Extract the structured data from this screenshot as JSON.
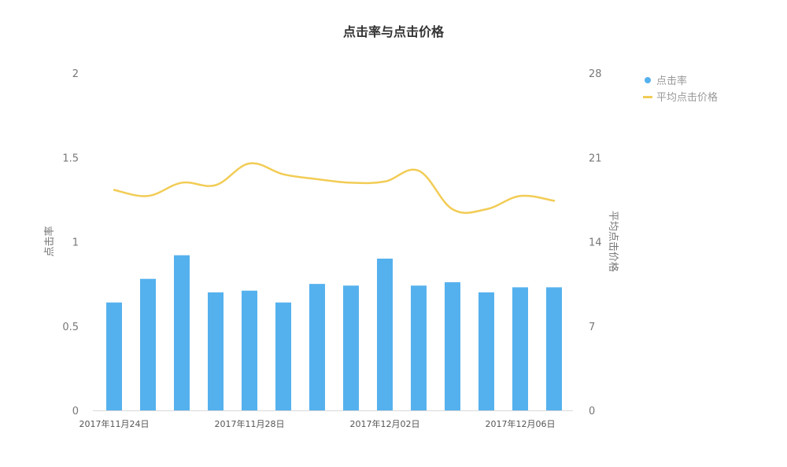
{
  "chart_data": {
    "type": "bar+line",
    "title": "点击率与点击价格",
    "x_labels": [
      "2017年11月24日",
      "2017年11月28日",
      "2017年12月02日",
      "2017年12月06日"
    ],
    "x_label_indices": [
      0,
      4,
      8,
      12
    ],
    "n_categories": 14,
    "y_left": {
      "label": "点击率",
      "ticks": [
        "0",
        "0.5",
        "1",
        "1.5",
        "2"
      ],
      "range": [
        0,
        2
      ]
    },
    "y_right": {
      "label": "平均点击价格",
      "ticks": [
        "0",
        "7",
        "14",
        "21",
        "28"
      ],
      "range": [
        0,
        28
      ]
    },
    "series": [
      {
        "name": "点击率",
        "kind": "bar",
        "axis": "left",
        "color": "#55b1ee",
        "values": [
          0.64,
          0.78,
          0.92,
          0.7,
          0.71,
          0.64,
          0.75,
          0.74,
          0.9,
          0.74,
          0.76,
          0.7,
          0.73,
          0.73
        ]
      },
      {
        "name": "平均点击价格",
        "kind": "line",
        "axis": "right",
        "color": "#f2cc55",
        "values": [
          18.3,
          17.8,
          18.9,
          18.7,
          20.5,
          19.6,
          19.2,
          18.9,
          19.0,
          19.9,
          16.7,
          16.7,
          17.8,
          17.4
        ]
      }
    ],
    "legend_position": "top-right"
  }
}
